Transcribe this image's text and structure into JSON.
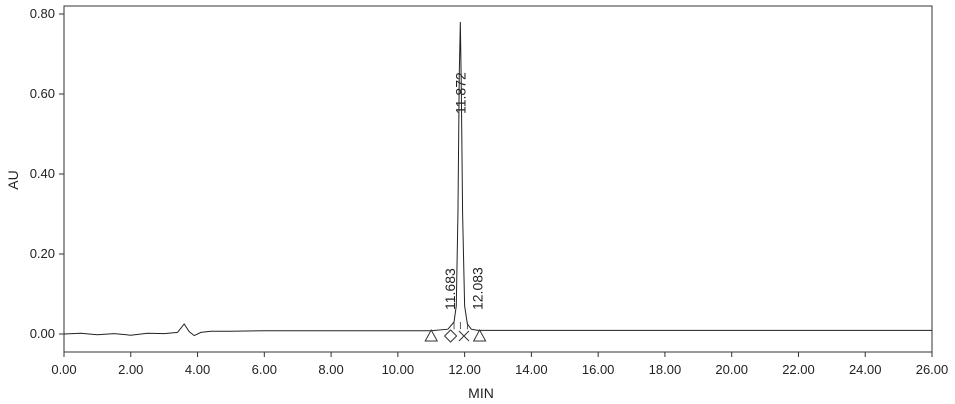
{
  "chart_data": {
    "type": "line",
    "xlabel": "MIN",
    "ylabel": "AU",
    "xlim": [
      0,
      26
    ],
    "ylim": [
      -0.045,
      0.82
    ],
    "x_ticks": [
      0,
      2,
      4,
      6,
      8,
      10,
      12,
      14,
      16,
      18,
      20,
      22,
      24,
      26
    ],
    "x_tick_labels": [
      "0.00",
      "2.00",
      "4.00",
      "6.00",
      "8.00",
      "10.00",
      "12.00",
      "14.00",
      "16.00",
      "18.00",
      "20.00",
      "22.00",
      "24.00",
      "26.00"
    ],
    "y_ticks": [
      0.0,
      0.2,
      0.4,
      0.6,
      0.8
    ],
    "y_tick_labels": [
      "0.00",
      "0.20",
      "0.40",
      "0.60",
      "0.80"
    ],
    "grid": false,
    "series": [
      {
        "x": [
          0,
          0.5,
          1.0,
          1.5,
          2.0,
          2.5,
          3.0,
          3.4,
          3.6,
          3.75,
          3.9,
          4.1,
          4.4,
          5,
          6,
          8,
          10,
          11.0,
          11.5,
          11.683,
          11.75,
          11.8,
          11.84,
          11.872,
          11.9,
          11.94,
          12.0,
          12.083,
          12.2,
          12.4,
          13,
          16,
          20,
          26
        ],
        "y": [
          0.0,
          0.002,
          -0.002,
          0.001,
          -0.003,
          0.002,
          0.001,
          0.004,
          0.025,
          0.006,
          -0.004,
          0.004,
          0.007,
          0.007,
          0.008,
          0.008,
          0.008,
          0.008,
          0.012,
          0.03,
          0.07,
          0.3,
          0.65,
          0.78,
          0.62,
          0.3,
          0.07,
          0.025,
          0.012,
          0.009,
          0.009,
          0.009,
          0.009,
          0.009
        ]
      }
    ],
    "peaks": [
      {
        "label": "11.683",
        "x": 11.683
      },
      {
        "label": "11.872",
        "x": 11.872
      },
      {
        "label": "12.083",
        "x": 12.083
      }
    ],
    "baseline_markers": [
      {
        "x": 11.0,
        "shape": "triangle"
      },
      {
        "x": 11.58,
        "shape": "diamond"
      },
      {
        "x": 11.98,
        "shape": "cross"
      },
      {
        "x": 12.45,
        "shape": "triangle"
      }
    ]
  }
}
